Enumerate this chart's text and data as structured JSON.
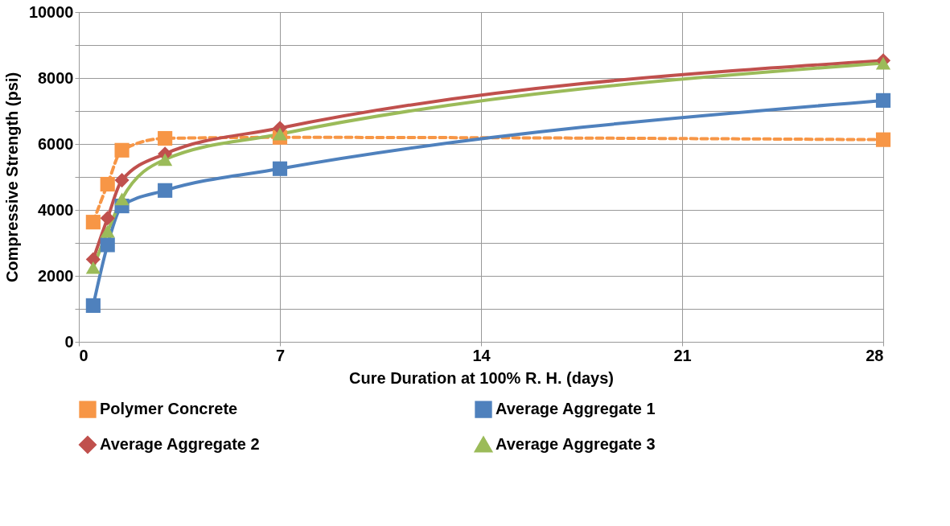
{
  "chart_data": {
    "type": "line",
    "xlabel": "Cure Duration at 100% R. H. (days)",
    "ylabel": "Compressive Strength (psi)",
    "x": [
      0.5,
      1,
      1.5,
      3,
      7,
      28
    ],
    "series": [
      {
        "name": "Polymer Concrete",
        "color": "#f79646",
        "marker": "square",
        "line_style": "dashed",
        "values": [
          3630,
          4780,
          5810,
          6170,
          6200,
          6130
        ]
      },
      {
        "name": "Average Aggregate 1",
        "color": "#4f81bd",
        "marker": "square",
        "line_style": "solid",
        "values": [
          1100,
          2940,
          4120,
          4590,
          5250,
          7320
        ]
      },
      {
        "name": "Average Aggregate 2",
        "color": "#c0504d",
        "marker": "diamond",
        "line_style": "solid",
        "values": [
          2500,
          3750,
          4900,
          5700,
          6480,
          8530
        ]
      },
      {
        "name": "Average Aggregate 3",
        "color": "#9bbb59",
        "marker": "triangle",
        "line_style": "solid",
        "values": [
          2250,
          3350,
          4330,
          5530,
          6300,
          8450
        ]
      }
    ],
    "xlim": [
      0,
      28
    ],
    "xticks": [
      0,
      7,
      14,
      21,
      28
    ],
    "ylim": [
      0,
      10000
    ],
    "yticks": [
      0,
      {
        "value": 1000,
        "label": null
      },
      2000,
      {
        "value": 3000,
        "label": null
      },
      4000,
      {
        "value": 5000,
        "label": null
      },
      6000,
      {
        "value": 7000,
        "label": null
      },
      8000,
      {
        "value": 9000,
        "label": null
      },
      10000
    ],
    "grid": true,
    "legend": "bottom"
  }
}
